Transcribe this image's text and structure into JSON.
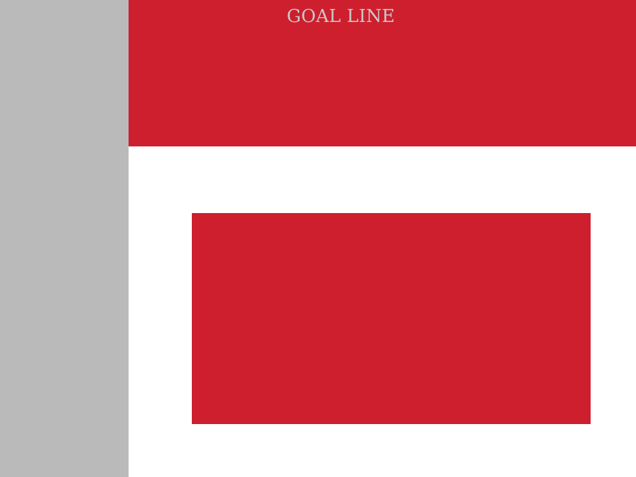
{
  "colors": {
    "sidebar": "#bababa",
    "brand_red": "#cd1f2d",
    "title_text": "#c9c9c9",
    "background": "#ffffff"
  },
  "header": {
    "title": "GOAL LINE"
  }
}
